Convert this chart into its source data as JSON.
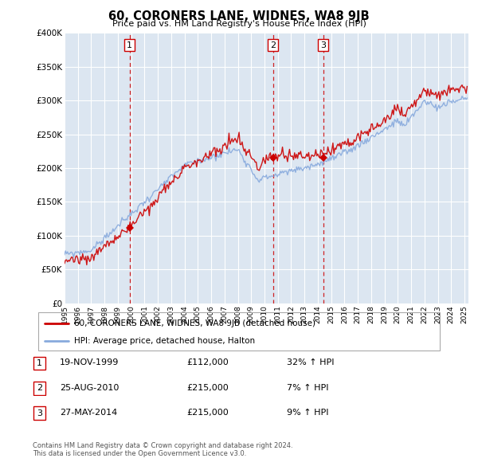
{
  "title": "60, CORONERS LANE, WIDNES, WA8 9JB",
  "subtitle": "Price paid vs. HM Land Registry's House Price Index (HPI)",
  "legend_line1": "60, CORONERS LANE, WIDNES, WA8 9JB (detached house)",
  "legend_line2": "HPI: Average price, detached house, Halton",
  "footer1": "Contains HM Land Registry data © Crown copyright and database right 2024.",
  "footer2": "This data is licensed under the Open Government Licence v3.0.",
  "transactions": [
    {
      "num": 1,
      "date": "19-NOV-1999",
      "price": 112000,
      "pct": "32% ↑ HPI",
      "x": 1999.88
    },
    {
      "num": 2,
      "date": "25-AUG-2010",
      "price": 215000,
      "pct": "7% ↑ HPI",
      "x": 2010.64
    },
    {
      "num": 3,
      "date": "27-MAY-2014",
      "price": 215000,
      "pct": "9% ↑ HPI",
      "x": 2014.4
    }
  ],
  "sale_price_color": "#cc0000",
  "hpi_color": "#88aadd",
  "vline_color": "#cc0000",
  "plot_bg_color": "#dce6f1",
  "grid_color": "#ffffff",
  "ylim": [
    0,
    400000
  ],
  "xlim_start": 1995.0,
  "xlim_end": 2025.3
}
